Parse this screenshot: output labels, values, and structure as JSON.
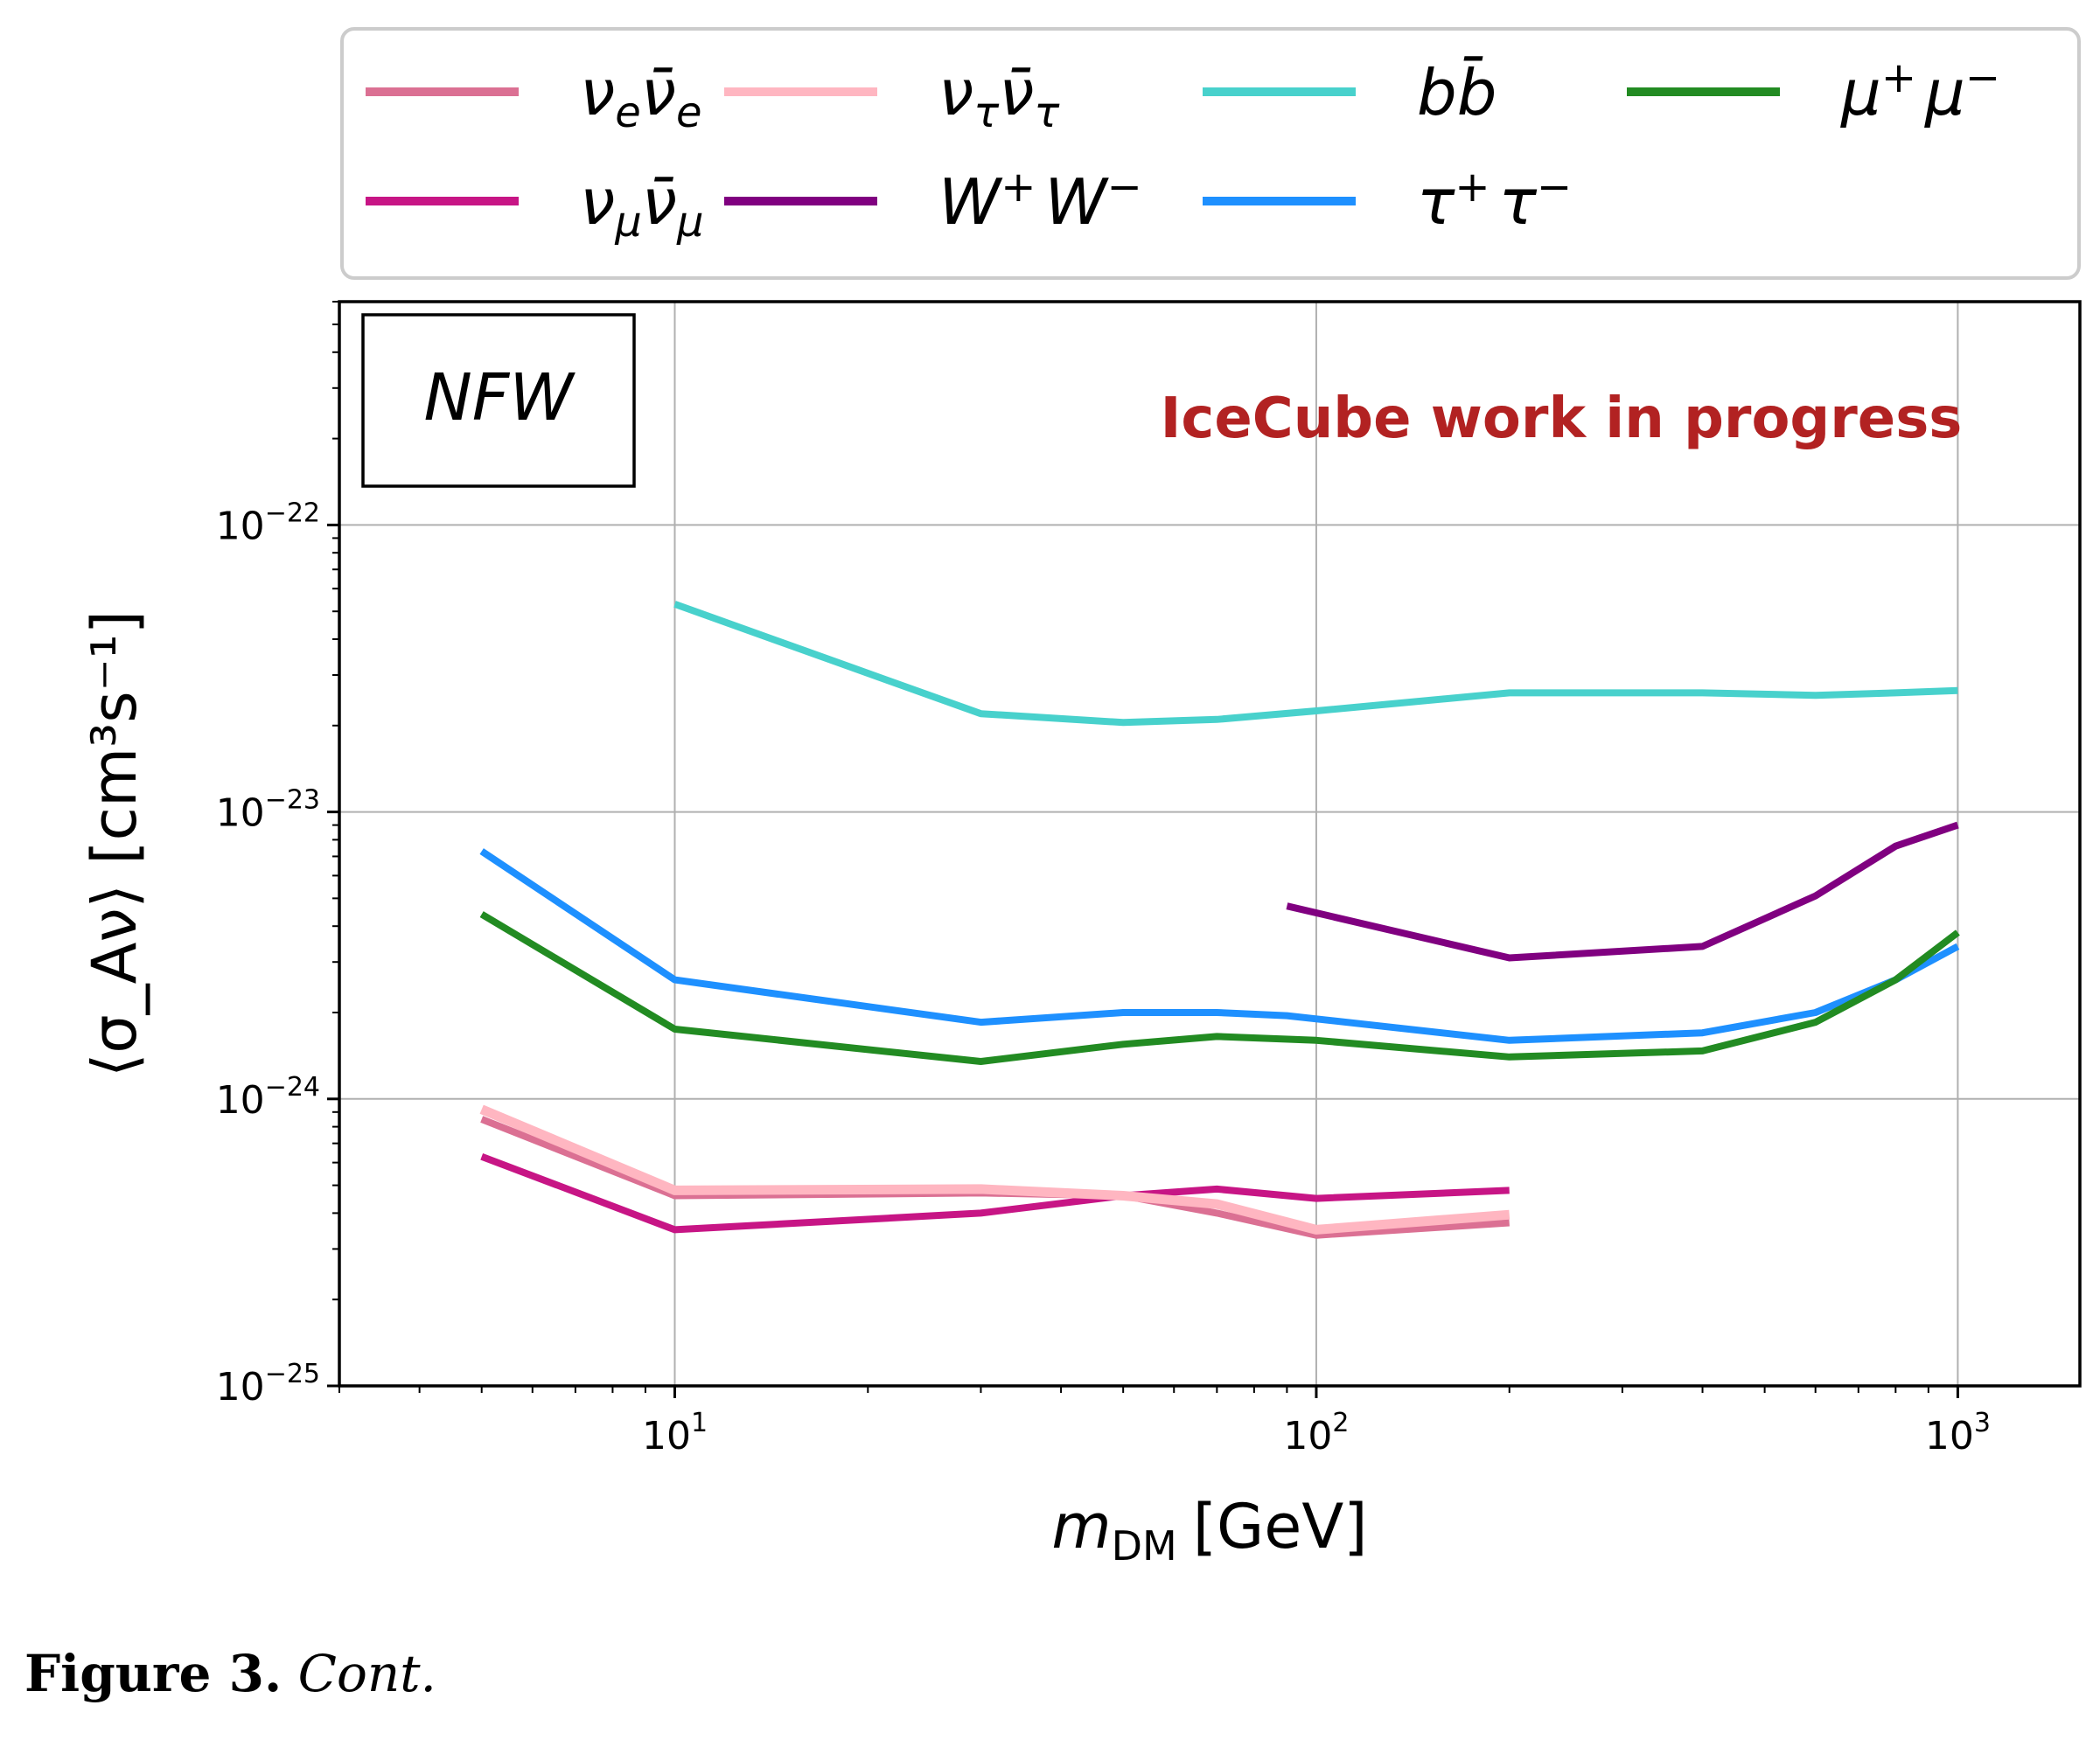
{
  "chart_data": {
    "type": "line",
    "xscale": "log",
    "yscale": "log",
    "xlim": [
      3,
      1550
    ],
    "ylim": [
      1e-25,
      6e-22
    ],
    "xlabel_main": "m",
    "xlabel_sub": "DM",
    "xlabel_unit": "[GeV]",
    "ylabel": "⟨σ_Aν⟩ [cm³s⁻¹]",
    "x_ticks": [
      {
        "value": 10,
        "base": "10",
        "exp": "1"
      },
      {
        "value": 100,
        "base": "10",
        "exp": "2"
      },
      {
        "value": 1000,
        "base": "10",
        "exp": "3"
      }
    ],
    "y_ticks": [
      {
        "value": 1e-25,
        "base": "10",
        "exp": "−25"
      },
      {
        "value": 1e-24,
        "base": "10",
        "exp": "−24"
      },
      {
        "value": 1e-23,
        "base": "10",
        "exp": "−23"
      },
      {
        "value": 1e-22,
        "base": "10",
        "exp": "−22"
      }
    ],
    "grid": true,
    "profile_label": "NFW",
    "annotation": "IceCube work in progress",
    "annotation_color": "#b22222",
    "legend_position": "top (outside)",
    "series": [
      {
        "name": "νeν̄e",
        "color": "#db7093",
        "x": [
          5,
          10,
          30,
          50,
          70,
          100,
          200
        ],
        "y": [
          8.5e-25,
          4.6e-25,
          4.7e-25,
          4.6e-25,
          4e-25,
          3.35e-25,
          3.7e-25
        ]
      },
      {
        "name": "νμν̄μ",
        "color": "#c71585",
        "x": [
          5,
          10,
          30,
          50,
          70,
          100,
          200
        ],
        "y": [
          6.3e-25,
          3.5e-25,
          4e-25,
          4.6e-25,
          4.85e-25,
          4.5e-25,
          4.8e-25
        ]
      },
      {
        "name": "ντν̄τ",
        "color": "#ffb6c1",
        "x": [
          5,
          10,
          30,
          50,
          70,
          100,
          200
        ],
        "y": [
          9.2e-25,
          4.8e-25,
          4.85e-25,
          4.6e-25,
          4.3e-25,
          3.5e-25,
          3.95e-25
        ]
      },
      {
        "name": "W⁺W⁻",
        "color": "#800080",
        "x": [
          90,
          200,
          400,
          600,
          800,
          1000
        ],
        "y": [
          4.7e-24,
          3.1e-24,
          3.4e-24,
          5.1e-24,
          7.6e-24,
          9e-24
        ]
      },
      {
        "name": "bb̄",
        "color": "#48d1cc",
        "x": [
          10,
          30,
          50,
          70,
          100,
          200,
          400,
          600,
          800,
          1000
        ],
        "y": [
          5.3e-23,
          2.2e-23,
          2.05e-23,
          2.1e-23,
          2.25e-23,
          2.6e-23,
          2.6e-23,
          2.55e-23,
          2.6e-23,
          2.65e-23
        ]
      },
      {
        "name": "τ⁺τ⁻",
        "color": "#1e90ff",
        "x": [
          5,
          10,
          30,
          50,
          70,
          90,
          100,
          200,
          400,
          600,
          800,
          1000
        ],
        "y": [
          7.3e-24,
          2.6e-24,
          1.85e-24,
          2e-24,
          2e-24,
          1.95e-24,
          1.9e-24,
          1.6e-24,
          1.7e-24,
          2e-24,
          2.6e-24,
          3.4e-24
        ]
      },
      {
        "name": "μ⁺μ⁻",
        "color": "#228b22",
        "x": [
          5,
          10,
          30,
          50,
          70,
          100,
          200,
          400,
          600,
          800,
          1000
        ],
        "y": [
          4.4e-24,
          1.75e-24,
          1.35e-24,
          1.55e-24,
          1.65e-24,
          1.6e-24,
          1.4e-24,
          1.47e-24,
          1.85e-24,
          2.6e-24,
          3.8e-24
        ]
      }
    ],
    "legend": [
      {
        "series": 0,
        "base": "ν",
        "sub1": "e",
        "bar": "ν̄",
        "sub2": "e"
      },
      {
        "series": 2,
        "base": "ν",
        "sub1": "τ",
        "bar": "ν̄",
        "sub2": "τ"
      },
      {
        "series": 4,
        "text": "bb̄"
      },
      {
        "series": 6,
        "base": "μ",
        "sup1": "+",
        "base2": "μ",
        "sup2": "−"
      },
      {
        "series": 1,
        "base": "ν",
        "sub1": "μ",
        "bar": "ν̄",
        "sub2": "μ"
      },
      {
        "series": 3,
        "base": "W",
        "sup1": "+",
        "base2": "W",
        "sup2": "−"
      },
      {
        "series": 5,
        "base": "τ",
        "sup1": "+",
        "base2": "τ",
        "sup2": "−"
      }
    ]
  },
  "caption": {
    "label": "Figure 3.",
    "text": "Cont."
  }
}
